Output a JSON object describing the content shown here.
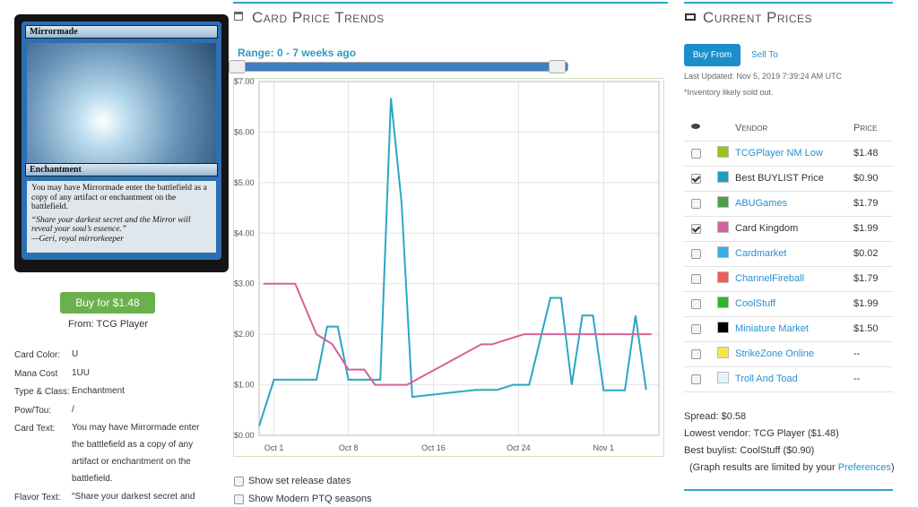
{
  "card": {
    "name": "Mirrormade",
    "type_line": "Enchantment",
    "rules": "You may have Mirrormade enter the battlefield as a copy of any artifact or enchantment on the battlefield.",
    "flavor": "“Share your darkest secret and the Mirror will reveal your soul’s essence.”",
    "flavor_author": "—Geri, royal mirrorkeeper"
  },
  "buy_button": "Buy for $1.48",
  "buy_from": "From: TCG Player",
  "details": [
    {
      "label": "Card Color:",
      "value": "U"
    },
    {
      "label": "Mana Cost",
      "value": "1UU"
    },
    {
      "label": "Type & Class:",
      "value": "Enchantment"
    },
    {
      "label": "Pow/Tou:",
      "value": "/"
    },
    {
      "label": "Card Text:",
      "value": "You may have Mirrormade enter the battlefield as a copy of any artifact or enchantment on the battlefield."
    },
    {
      "label": "Flavor Text:",
      "value": "\"Share your darkest secret and"
    }
  ],
  "trends": {
    "title": "Card Price Trends",
    "range": "Range: 0 - 7 weeks ago",
    "options": [
      "Show set release dates",
      "Show Modern PTQ seasons"
    ]
  },
  "chart_data": {
    "type": "line",
    "xlim": [
      -0.4,
      37.2
    ],
    "xticks": [
      {
        "value": 1,
        "label": "Oct 1"
      },
      {
        "value": 8,
        "label": "Oct 8"
      },
      {
        "value": 16,
        "label": "Oct 16"
      },
      {
        "value": 24,
        "label": "Oct 24"
      },
      {
        "value": 32,
        "label": "Nov 1"
      }
    ],
    "ylim": [
      0,
      7
    ],
    "yticks": [
      {
        "value": 0,
        "label": "$0.00"
      },
      {
        "value": 1,
        "label": "$1.00"
      },
      {
        "value": 2,
        "label": "$2.00"
      },
      {
        "value": 3,
        "label": "$3.00"
      },
      {
        "value": 4,
        "label": "$4.00"
      },
      {
        "value": 5,
        "label": "$5.00"
      },
      {
        "value": 6,
        "label": "$6.00"
      },
      {
        "value": 7,
        "label": "$7.00"
      }
    ],
    "grid": true,
    "series": [
      {
        "color": "#2aa6c4",
        "x": [
          -0.4,
          1,
          5,
          6,
          7,
          8,
          11,
          12,
          13,
          14,
          20,
          22,
          23.5,
          25,
          27,
          28,
          29,
          30,
          31,
          32,
          34,
          35,
          36
        ],
        "values": [
          0.18,
          1.1,
          1.1,
          2.15,
          2.15,
          1.1,
          1.1,
          6.67,
          4.6,
          0.76,
          0.9,
          0.9,
          1.0,
          1.0,
          2.72,
          2.72,
          1.0,
          2.37,
          2.37,
          0.89,
          0.89,
          2.37,
          0.9
        ]
      },
      {
        "color": "#d6609a",
        "x": [
          0,
          3,
          5,
          6.5,
          8,
          9.5,
          10.5,
          13.5,
          20.5,
          21.5,
          24.5,
          36.5
        ],
        "values": [
          3.0,
          3.0,
          2.0,
          1.8,
          1.3,
          1.3,
          1.0,
          1.0,
          1.8,
          1.8,
          2.0,
          2.0
        ]
      }
    ]
  },
  "prices": {
    "title": "Current Prices",
    "tabs": [
      "Buy From",
      "Sell To"
    ],
    "updated": "Last Updated: Nov 5, 2019 7:39:24 AM UTC",
    "note": "*Inventory likely sold out.",
    "columns": [
      "Vendor",
      "Price"
    ],
    "vendors": [
      {
        "name": "TCGPlayer NM Low",
        "price": "$1.48",
        "color": "#9bc31b",
        "checked": false
      },
      {
        "name": "Best BUYLIST Price",
        "price": "$0.90",
        "color": "#1a9fc1",
        "checked": true
      },
      {
        "name": "ABUGames",
        "price": "$1.79",
        "color": "#4c9e48",
        "checked": false
      },
      {
        "name": "Card Kingdom",
        "price": "$1.99",
        "color": "#d6609a",
        "checked": true
      },
      {
        "name": "Cardmarket",
        "price": "$0.02",
        "color": "#33b0e6",
        "checked": false
      },
      {
        "name": "ChannelFireball",
        "price": "$1.79",
        "color": "#f05b5b",
        "checked": false
      },
      {
        "name": "CoolStuff",
        "price": "$1.99",
        "color": "#2bb52b",
        "checked": false
      },
      {
        "name": "Miniature Market",
        "price": "$1.50",
        "color": "#000000",
        "checked": false
      },
      {
        "name": "StrikeZone Online",
        "price": "--",
        "color": "#f7e64a",
        "checked": false
      },
      {
        "name": "Troll And Toad",
        "price": "--",
        "color": "#dff7fb",
        "checked": false
      }
    ],
    "spread": "Spread: $0.58",
    "lowest": "Lowest vendor: TCG Player ($1.48)",
    "best_buylist": "Best buylist: CoolStuff ($0.90)",
    "graph_note": "(Graph results are limited by your",
    "preferences_link": "Preferences",
    "graph_note_end": ")"
  }
}
